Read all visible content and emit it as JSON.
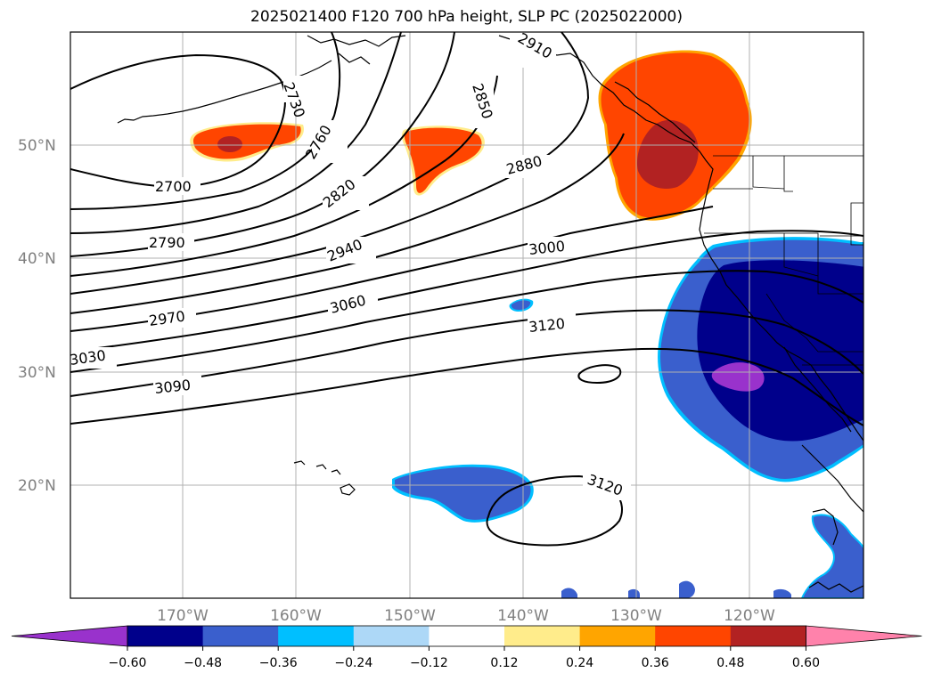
{
  "title": "2025021400 F120 700 hPa height, SLP PC (2025022000)",
  "lat_labels": [
    "50°N",
    "40°N",
    "30°N",
    "20°N"
  ],
  "lon_labels": [
    "170°W",
    "160°W",
    "150°W",
    "140°W",
    "130°W",
    "120°W"
  ],
  "contour_labels": {
    "c2700": "2700",
    "c2730": "2730",
    "c2760": "2760",
    "c2790": "2790",
    "c2820": "2820",
    "c2850": "2850",
    "c2880": "2880",
    "c2910": "2910",
    "c2940": "2940",
    "c2970": "2970",
    "c3000": "3000",
    "c3030": "3030",
    "c3060": "3060",
    "c3090": "3090",
    "c3120a": "3120",
    "c3120b": "3120"
  },
  "colorbar": {
    "ticks": [
      "−0.60",
      "−0.48",
      "−0.36",
      "−0.24",
      "−0.12",
      "0.12",
      "0.24",
      "0.36",
      "0.48",
      "0.60"
    ],
    "colors": [
      "#9932cc",
      "#00008b",
      "#3a5fcd",
      "#00bfff",
      "#add8f7",
      "#ffffff",
      "#ffec8b",
      "#ffa500",
      "#ff4500",
      "#b22222",
      "#ff82ab"
    ]
  },
  "colors": {
    "neg_purple": "#9932cc",
    "neg_navy": "#00008b",
    "neg_blue": "#3a5fcd",
    "neg_sky": "#00bfff",
    "pos_yellow": "#ffec8b",
    "pos_orange": "#ffa500",
    "pos_red_orange": "#ff4500",
    "pos_firebrick": "#b22222"
  }
}
